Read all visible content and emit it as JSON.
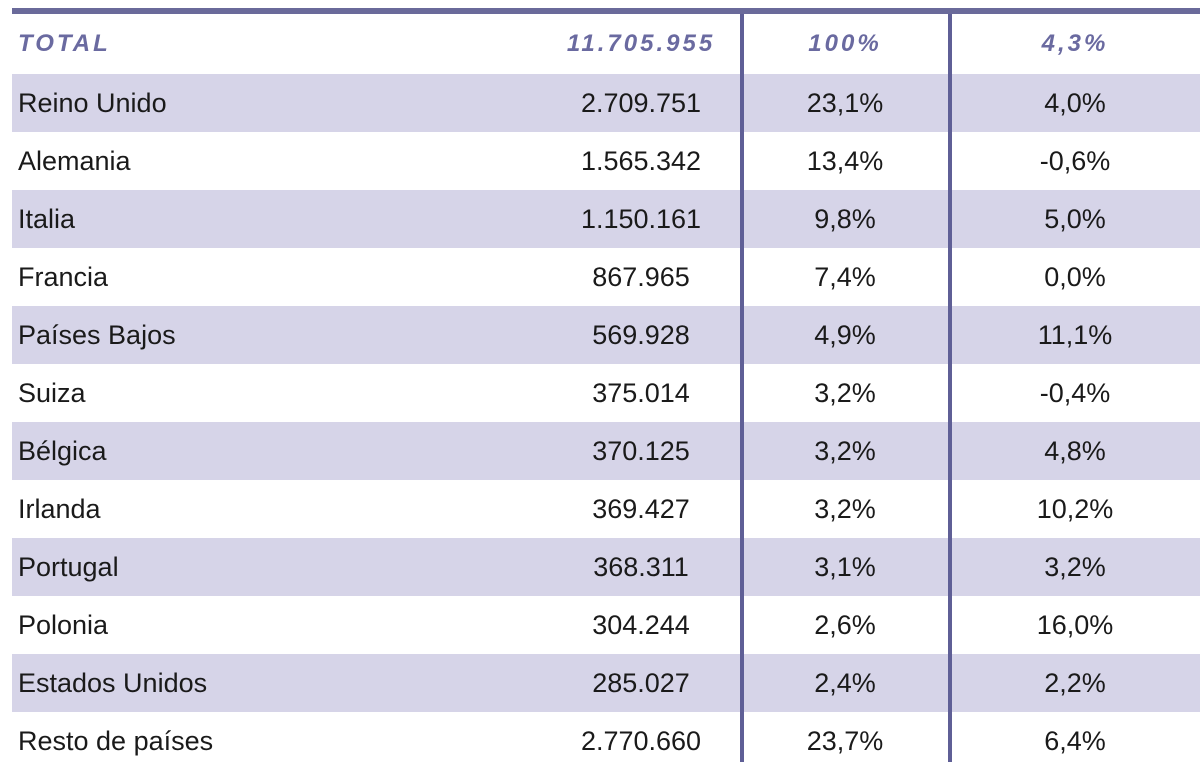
{
  "total": {
    "label": "TOTAL",
    "value": "11.705.955",
    "share": "100%",
    "change": "4,3%"
  },
  "rows": [
    {
      "country": "Reino Unido",
      "value": "2.709.751",
      "share": "23,1%",
      "change": "4,0%"
    },
    {
      "country": "Alemania",
      "value": "1.565.342",
      "share": "13,4%",
      "change": "-0,6%"
    },
    {
      "country": "Italia",
      "value": "1.150.161",
      "share": "9,8%",
      "change": "5,0%"
    },
    {
      "country": "Francia",
      "value": "867.965",
      "share": "7,4%",
      "change": "0,0%"
    },
    {
      "country": "Países Bajos",
      "value": "569.928",
      "share": "4,9%",
      "change": "11,1%"
    },
    {
      "country": "Suiza",
      "value": "375.014",
      "share": "3,2%",
      "change": "-0,4%"
    },
    {
      "country": "Bélgica",
      "value": "370.125",
      "share": "3,2%",
      "change": "4,8%"
    },
    {
      "country": "Irlanda",
      "value": "369.427",
      "share": "3,2%",
      "change": "10,2%"
    },
    {
      "country": "Portugal",
      "value": "368.311",
      "share": "3,1%",
      "change": "3,2%"
    },
    {
      "country": "Polonia",
      "value": "304.244",
      "share": "2,6%",
      "change": "16,0%"
    },
    {
      "country": "Estados Unidos",
      "value": "285.027",
      "share": "2,4%",
      "change": "2,2%"
    },
    {
      "country": "Resto de países",
      "value": "2.770.660",
      "share": "23,7%",
      "change": "6,4%"
    }
  ],
  "colors": {
    "shade": "#d6d4e8",
    "accent": "#6a6aa0",
    "rule": "#5f5f96"
  }
}
